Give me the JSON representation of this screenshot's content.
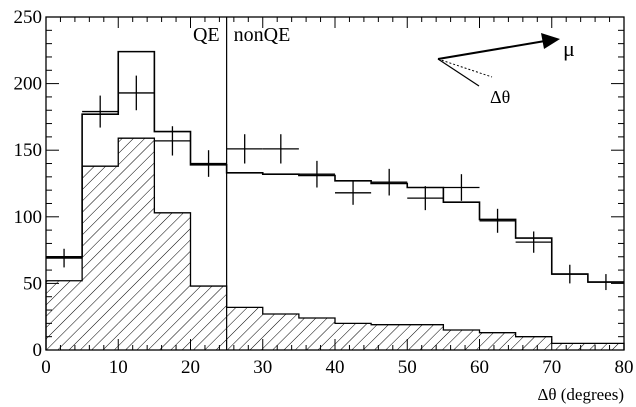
{
  "chart_data": {
    "type": "histogram",
    "xlabel": "Δθ (degrees)",
    "ylabel": "",
    "xlim": [
      0,
      80
    ],
    "ylim": [
      0,
      250
    ],
    "x_ticks": [
      0,
      10,
      20,
      30,
      40,
      50,
      60,
      70,
      80
    ],
    "y_ticks": [
      0,
      50,
      100,
      150,
      200,
      250
    ],
    "bin_edges": [
      0,
      5,
      10,
      15,
      20,
      25,
      30,
      35,
      40,
      45,
      50,
      55,
      60,
      65,
      70,
      75,
      80
    ],
    "series": [
      {
        "style": "step-line",
        "values": [
          70,
          177,
          224,
          164,
          139,
          133,
          132,
          131,
          127,
          125,
          122,
          111,
          98,
          84,
          57,
          51
        ]
      },
      {
        "style": "hatched-fill",
        "values": [
          52,
          138,
          159,
          103,
          48,
          32,
          27,
          24,
          20,
          19,
          19,
          15,
          13,
          10,
          5,
          5
        ]
      },
      {
        "style": "data-points",
        "x": [
          2.5,
          7.5,
          12.5,
          17.5,
          22.5,
          27.5,
          32.5,
          37.5,
          42.5,
          47.5,
          52.5,
          57.5,
          62.5,
          67.5,
          72.5,
          77.5
        ],
        "values": [
          69,
          179,
          193,
          157,
          140,
          151,
          151,
          132,
          118,
          126,
          114,
          122,
          97,
          81,
          57,
          51
        ],
        "errors": [
          7,
          12,
          13,
          11,
          10,
          11,
          11,
          10,
          9,
          10,
          9,
          10,
          9,
          8,
          7,
          6
        ]
      }
    ],
    "cut_line_x": 25,
    "region_labels": {
      "left": "QE",
      "right": "nonQE"
    },
    "inset": {
      "arrow_label": "μ",
      "angle_label": "Δθ"
    },
    "grid": false
  }
}
